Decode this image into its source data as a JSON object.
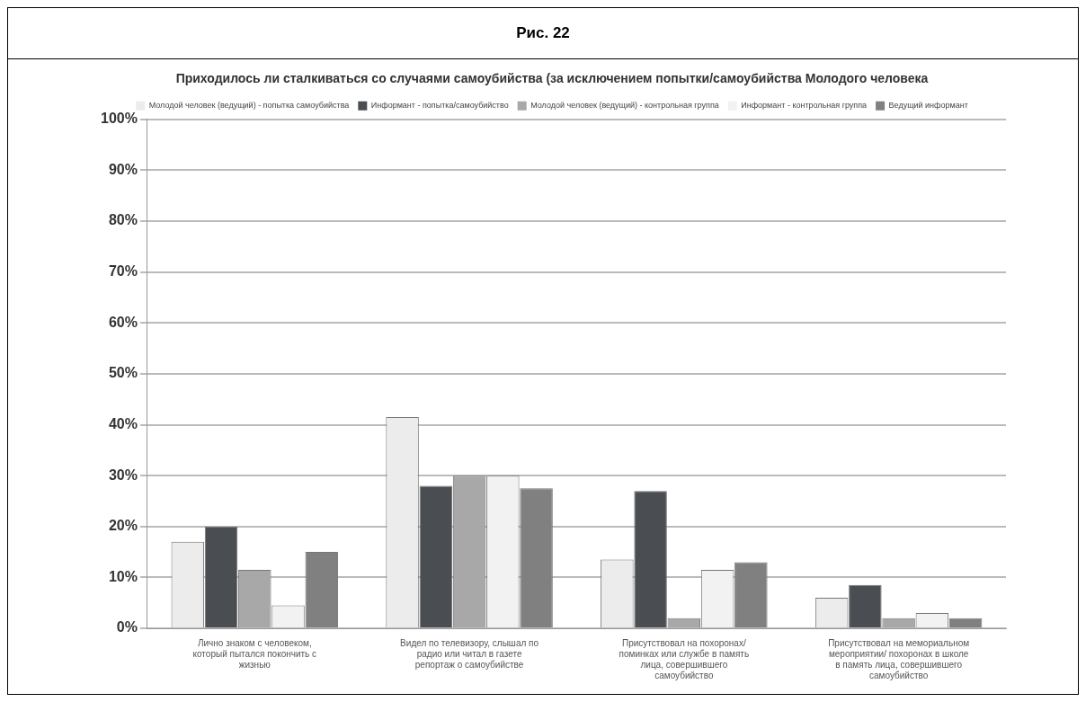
{
  "chart_data": {
    "type": "bar",
    "title": "Приходилось ли сталкиваться со случаями самоубийства (за исключением попытки/самоубийства Молодого человека",
    "annotations": [
      "Рис. 22"
    ],
    "categories": [
      "Лично знаком с человеком, который пытался покончить с жизнью",
      "Видел по телевизору, слышал по радио или читал в газете репортаж о самоубийстве",
      "Присутствовал на похоронах/ поминках или службе в память лица, совершившего самоубийство",
      "Присутствовал на мемориальном мероприятии/ похоронах в школе в память лица, совершившего самоубийство"
    ],
    "series": [
      {
        "name": "Молодой человек (ведущий) - попытка самоубийства",
        "color": "#ececec",
        "values": [
          17,
          41.5,
          13.5,
          6
        ]
      },
      {
        "name": "Информант - попытка/самоубийство",
        "color": "#4a4d52",
        "values": [
          20,
          28,
          27,
          8.5
        ]
      },
      {
        "name": "Молодой человек (ведущий) - контрольная группа",
        "color": "#a8a8a8",
        "values": [
          11.5,
          30,
          2,
          2
        ]
      },
      {
        "name": "Информант - контрольная группа",
        "color": "#f2f2f2",
        "values": [
          4.5,
          30,
          11.5,
          3
        ]
      },
      {
        "name": "Ведущий информант",
        "color": "#808080",
        "values": [
          15,
          27.5,
          13,
          2
        ]
      }
    ],
    "ylim": [
      0,
      100
    ],
    "yticks": [
      {
        "value": 0,
        "label": "0%"
      },
      {
        "value": 10,
        "label": "10%"
      },
      {
        "value": 20,
        "label": "20%"
      },
      {
        "value": 30,
        "label": "30%"
      },
      {
        "value": 40,
        "label": "40%"
      },
      {
        "value": 50,
        "label": "50%"
      },
      {
        "value": 60,
        "label": "60%"
      },
      {
        "value": 70,
        "label": "70%"
      },
      {
        "value": 80,
        "label": "80%"
      },
      {
        "value": 90,
        "label": "90%"
      },
      {
        "value": 100,
        "label": "100%"
      }
    ],
    "grid": "y",
    "legend": "top"
  }
}
